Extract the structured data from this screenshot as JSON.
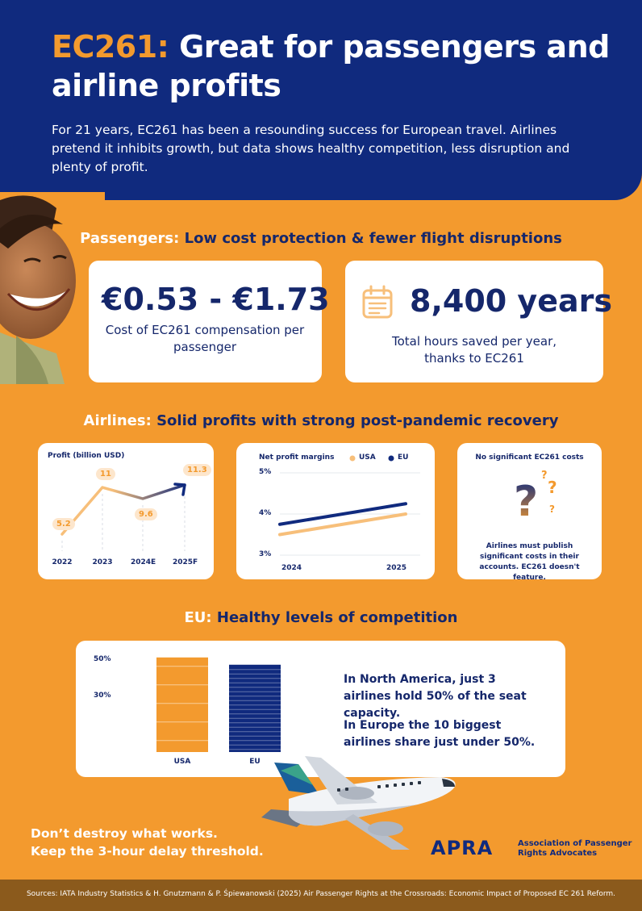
{
  "hero": {
    "title_accent": "EC261:",
    "title_rest": " Great for passengers and airline profits",
    "intro": "For 21 years, EC261 has been a resounding success for European travel. Airlines pretend it inhibits growth, but data shows healthy competition, less disruption and plenty of profit."
  },
  "passengers": {
    "heading_accent": "Passengers:",
    "heading_rest": " Low cost protection & fewer flight disruptions",
    "cost_value": "€0.53 - €1.73",
    "cost_label": "Cost of EC261 compensation per passenger",
    "time_value": "8,400 years",
    "time_label": "Total hours saved per year, thanks to EC261",
    "time_icon": "calendar-icon"
  },
  "airlines": {
    "heading_accent": "Airlines:",
    "heading_rest": " Solid profits with strong post-pandemic recovery",
    "no_costs_title": "No significant EC261 costs",
    "no_costs_text": "Airlines must publish significant costs in their accounts. EC261 doesn't feature.",
    "question_icon": "question-mark-icon"
  },
  "competition": {
    "heading_accent": "EU:",
    "heading_rest": " Healthy levels of competition",
    "text1": "In North America, just 3 airlines hold 50% of the seat capacity.",
    "text2": "In Europe the 10 biggest airlines share just under 50%."
  },
  "cta": {
    "line1": "Don’t destroy what works.",
    "line2": "Keep the 3-hour delay threshold."
  },
  "brand": {
    "logo": "APRA",
    "name_line1": "Association of Passenger",
    "name_line2": "Rights Advocates"
  },
  "footer": {
    "sources": "Sources: IATA Industry Statistics &  H. Gnutzmann & P. Śpiewanowski (2025) Air Passenger Rights at the Crossroads: Economic Impact of Proposed EC 261 Reform."
  },
  "colors": {
    "navy": "#102a7e",
    "orange": "#f39a2e",
    "light_orange": "#f7bf7a",
    "white": "#ffffff"
  },
  "chart_data": [
    {
      "type": "line",
      "title": "Profit (billion USD)",
      "categories": [
        "2022",
        "2023",
        "2024E",
        "2025F"
      ],
      "values": [
        5.2,
        11,
        9.6,
        11.3
      ],
      "ylim": [
        4,
        12.5
      ],
      "grid": false
    },
    {
      "type": "line",
      "title": "Net profit margins",
      "x": [
        "2024",
        "2025"
      ],
      "y_ticks": [
        "5%",
        "4%",
        "3%"
      ],
      "ylim": [
        3,
        5
      ],
      "series": [
        {
          "name": "USA",
          "values": [
            3.5,
            4.0
          ],
          "color": "#f7bf7a"
        },
        {
          "name": "EU",
          "values": [
            3.75,
            4.25
          ],
          "color": "#102a7e"
        }
      ],
      "legend": "top-right",
      "grid": true
    },
    {
      "type": "bar",
      "categories": [
        "USA",
        "EU"
      ],
      "values": [
        52,
        48
      ],
      "y_ticks": [
        "50%",
        "30%"
      ],
      "ylim": [
        0,
        55
      ],
      "colors": [
        "#f39a2e",
        "#102a7e"
      ],
      "grid": false
    }
  ]
}
